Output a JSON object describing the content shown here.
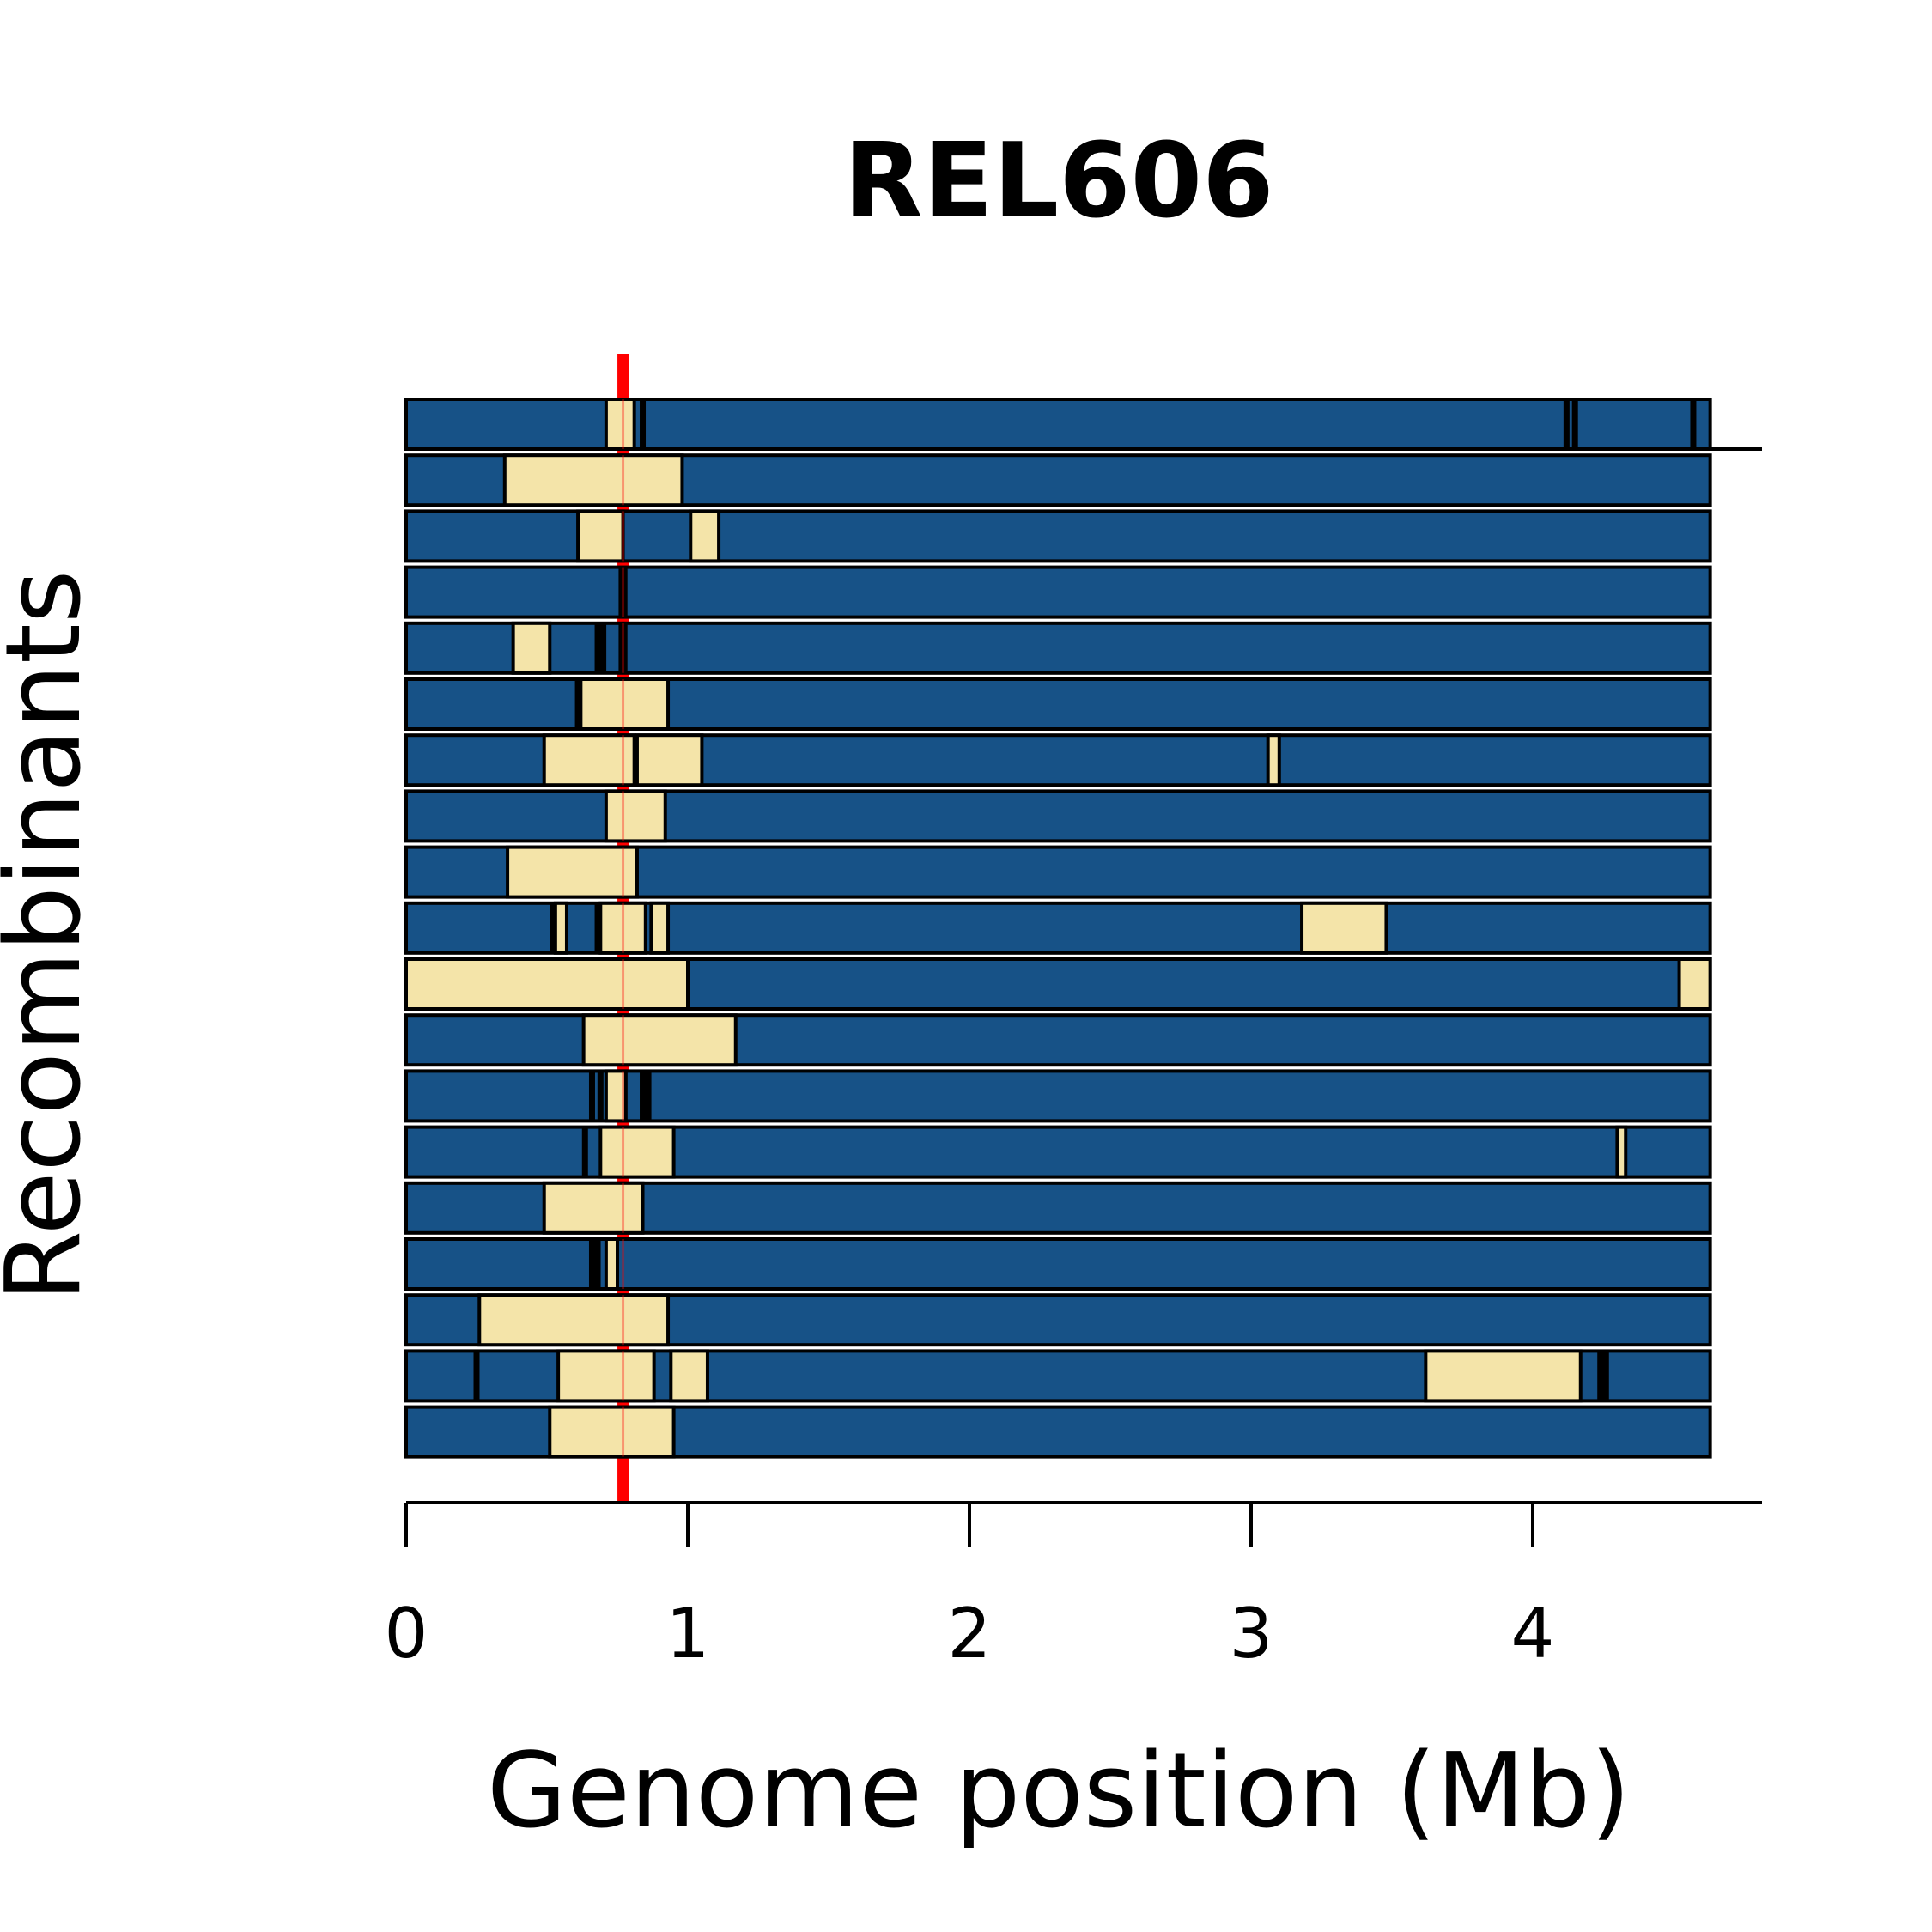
{
  "chart_data": {
    "type": "genome-segment-bars",
    "title": "REL606",
    "xlabel": "Genome position (Mb)",
    "ylabel": "Recombinants",
    "xlim": [
      0,
      4.63
    ],
    "xticks": [
      0,
      1,
      2,
      3,
      4
    ],
    "xtick_labels": [
      "0",
      "1",
      "2",
      "3",
      "4"
    ],
    "marker_position": 0.77,
    "colors": {
      "background_segment": "#175287",
      "donor_segment": "#f4e4a9",
      "marker_line": "#ff0000",
      "outline": "#000000"
    },
    "genome_end": 4.63,
    "rows": [
      {
        "donor": [
          [
            0.71,
            0.81
          ]
        ],
        "boundaries": [
          0.84,
          4.12,
          4.15,
          4.57
        ]
      },
      {
        "donor": [
          [
            0.35,
            0.98
          ]
        ],
        "boundaries": []
      },
      {
        "donor": [
          [
            0.61,
            0.77
          ],
          [
            1.01,
            1.11
          ]
        ],
        "boundaries": []
      },
      {
        "donor": [],
        "boundaries": [
          0.765,
          0.775
        ]
      },
      {
        "donor": [
          [
            0.38,
            0.51
          ]
        ],
        "boundaries": [
          0.68,
          0.7,
          0.765,
          0.775
        ]
      },
      {
        "donor": [
          [
            0.62,
            0.93
          ]
        ],
        "boundaries": [
          0.61
        ]
      },
      {
        "donor": [
          [
            0.49,
            0.81
          ],
          [
            0.82,
            1.05
          ],
          [
            3.06,
            3.1
          ]
        ],
        "boundaries": []
      },
      {
        "donor": [
          [
            0.71,
            0.92
          ]
        ],
        "boundaries": []
      },
      {
        "donor": [
          [
            0.36,
            0.82
          ]
        ],
        "boundaries": []
      },
      {
        "donor": [
          [
            0.53,
            0.57
          ],
          [
            0.69,
            0.85
          ],
          [
            0.87,
            0.93
          ],
          [
            3.18,
            3.48
          ]
        ],
        "boundaries": [
          0.52,
          0.68
        ]
      },
      {
        "donor": [
          [
            0,
            1.0
          ],
          [
            4.52,
            4.63
          ]
        ],
        "boundaries": []
      },
      {
        "donor": [
          [
            0.63,
            1.17
          ]
        ],
        "boundaries": []
      },
      {
        "donor": [
          [
            0.71,
            0.78
          ]
        ],
        "boundaries": [
          0.66,
          0.69,
          0.84,
          0.86
        ]
      },
      {
        "donor": [
          [
            0.69,
            0.95
          ],
          [
            4.3,
            4.33
          ]
        ],
        "boundaries": [
          0.635
        ]
      },
      {
        "donor": [
          [
            0.49,
            0.84
          ]
        ],
        "boundaries": []
      },
      {
        "donor": [
          [
            0.71,
            0.75
          ]
        ],
        "boundaries": [
          0.66,
          0.68
        ]
      },
      {
        "donor": [
          [
            0.26,
            0.93
          ]
        ],
        "boundaries": []
      },
      {
        "donor": [
          [
            0.54,
            0.88
          ],
          [
            0.94,
            1.07
          ],
          [
            3.62,
            4.17
          ]
        ],
        "boundaries": [
          0.25,
          4.24,
          4.26
        ]
      },
      {
        "donor": [
          [
            0.51,
            0.95
          ]
        ],
        "boundaries": []
      }
    ]
  }
}
